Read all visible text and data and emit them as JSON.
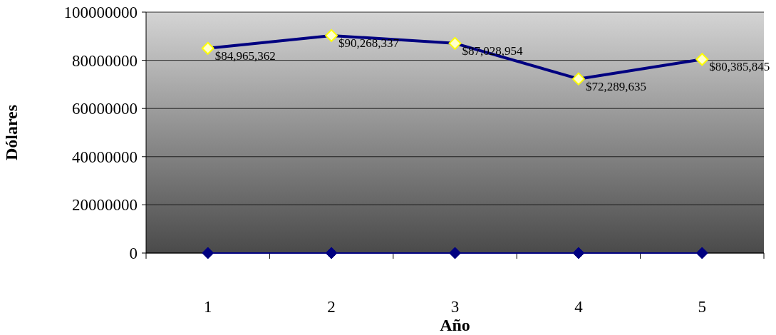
{
  "chart_data": {
    "type": "line",
    "xlabel": "Año",
    "ylabel": "Dólares",
    "categories": [
      "1",
      "2",
      "3",
      "4",
      "5"
    ],
    "series": [
      {
        "color": "#000080",
        "values": [
          84965362,
          90268337,
          87028954,
          72289635,
          80385845
        ],
        "value_labels": [
          "$84,965,362",
          "$90,268,337",
          "$87,028,954",
          "$72,289,635",
          "$80,385,845"
        ]
      },
      {
        "color": "#000080",
        "values": [
          0,
          0,
          0,
          0,
          0
        ]
      }
    ],
    "ylim": [
      0,
      100000000
    ],
    "yticks": [
      0,
      20000000,
      40000000,
      60000000,
      80000000,
      100000000
    ],
    "grid": "y",
    "marker": "diamond",
    "line_style": "solid"
  }
}
